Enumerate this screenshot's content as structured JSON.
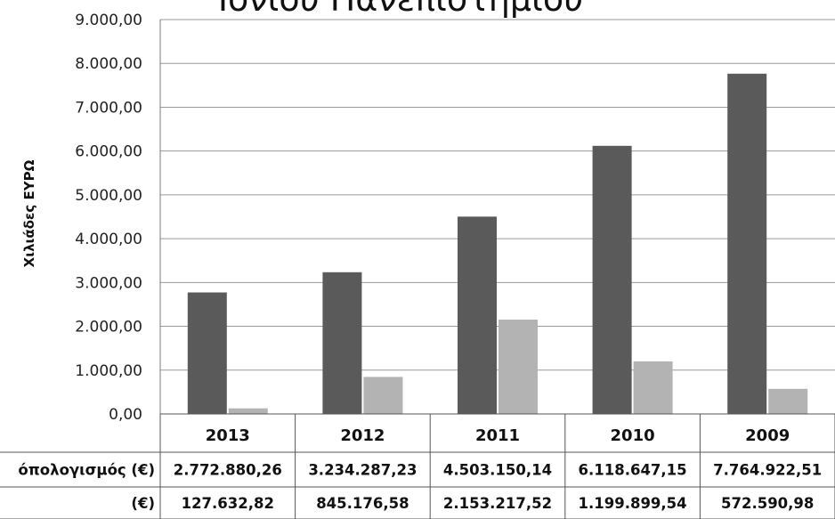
{
  "chart_data": {
    "type": "bar",
    "title": "Ιονίου Πανεπιστημίου",
    "ylabel": "Χιλιάδες ΕΥΡΩ",
    "ylim": [
      0,
      9000
    ],
    "yticks": [
      "0,00",
      "1.000,00",
      "2.000,00",
      "3.000,00",
      "4.000,00",
      "5.000,00",
      "6.000,00",
      "7.000,00",
      "8.000,00",
      "9.000,00"
    ],
    "categories": [
      "2013",
      "2012",
      "2011",
      "2010",
      "2009"
    ],
    "grid": true,
    "series": [
      {
        "name": "όπολογισμός (€)",
        "color": "#5a5a5a",
        "values": [
          2772.88,
          3234.29,
          4503.15,
          6118.65,
          7764.92
        ],
        "labels": [
          "2.772.880,26",
          "3.234.287,23",
          "4.503.150,14",
          "6.118.647,15",
          "7.764.922,51"
        ]
      },
      {
        "name": "(€)",
        "color": "#b3b3b3",
        "values": [
          127.63,
          845.18,
          2153.22,
          1199.9,
          572.59
        ],
        "labels": [
          "127.632,82",
          "845.176,58",
          "2.153.217,52",
          "1.199.899,54",
          "572.590,98"
        ]
      }
    ]
  }
}
